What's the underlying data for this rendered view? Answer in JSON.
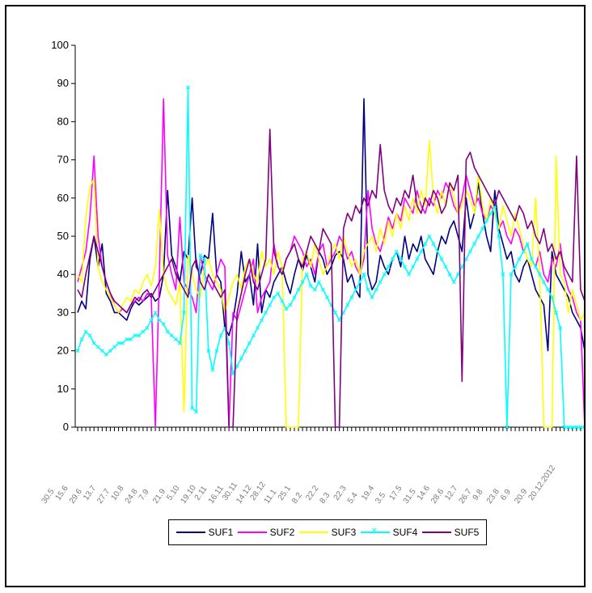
{
  "chart_data": {
    "type": "line",
    "title": "",
    "xlabel": "",
    "ylabel": "",
    "ylim": [
      0,
      100
    ],
    "yticks": [
      "0",
      "10",
      "20",
      "30",
      "40",
      "50",
      "60",
      "70",
      "80",
      "90",
      "100"
    ],
    "legend_position": "bottom",
    "grid": false,
    "x_tick_labels": [
      "30.5",
      "15.6",
      "29.6",
      "13.7",
      "27.7",
      "10.8",
      "24.8",
      "7.9",
      "21.9",
      "5.10",
      "19.10",
      "2.11",
      "16.11",
      "30.11",
      "14.12",
      "28.12",
      "11.1",
      "25.1",
      "8.2",
      "22.2",
      "8.3",
      "22.3",
      "5.4",
      "19.4",
      "3.5",
      "17.5",
      "31.5",
      "14.6",
      "28.6",
      "12.7",
      "26.7",
      "9.8",
      "23.8",
      "6.9",
      "20.9",
      "20.12.2012"
    ],
    "series": [
      {
        "name": "SUF1",
        "color": "#000080",
        "marker": "none",
        "values": [
          30,
          33,
          31,
          44,
          50,
          42,
          48,
          35,
          33,
          30,
          30,
          29,
          28,
          31,
          33,
          32,
          33,
          34,
          35,
          33,
          34,
          40,
          62,
          45,
          42,
          38,
          46,
          44,
          60,
          42,
          40,
          45,
          44,
          56,
          40,
          38,
          26,
          24,
          28,
          35,
          46,
          38,
          40,
          32,
          48,
          30,
          36,
          34,
          38,
          40,
          42,
          38,
          35,
          40,
          44,
          41,
          45,
          42,
          38,
          46,
          44,
          40,
          42,
          45,
          46,
          44,
          38,
          40,
          36,
          34,
          86,
          40,
          36,
          38,
          45,
          42,
          40,
          44,
          46,
          42,
          50,
          44,
          48,
          46,
          50,
          44,
          42,
          40,
          46,
          50,
          48,
          52,
          54,
          50,
          46,
          60,
          52,
          56,
          64,
          56,
          50,
          46,
          62,
          52,
          48,
          44,
          46,
          40,
          38,
          42,
          44,
          40,
          36,
          34,
          32,
          20,
          46,
          40,
          38,
          36,
          34,
          30,
          28,
          26,
          20
        ]
      },
      {
        "name": "SUF2",
        "color": "#ff00ff",
        "marker": "none",
        "values": [
          38,
          42,
          46,
          55,
          71,
          50,
          42,
          38,
          35,
          32,
          30,
          31,
          30,
          32,
          33,
          34,
          33,
          35,
          34,
          0,
          40,
          86,
          45,
          40,
          36,
          55,
          38,
          36,
          34,
          30,
          45,
          40,
          38,
          36,
          40,
          44,
          42,
          0,
          30,
          28,
          32,
          36,
          40,
          44,
          30,
          34,
          36,
          38,
          48,
          42,
          40,
          44,
          46,
          50,
          48,
          46,
          42,
          44,
          40,
          46,
          48,
          42,
          44,
          46,
          50,
          48,
          44,
          46,
          42,
          40,
          44,
          62,
          52,
          48,
          46,
          50,
          55,
          52,
          56,
          54,
          60,
          58,
          56,
          62,
          58,
          56,
          60,
          58,
          62,
          60,
          64,
          62,
          58,
          56,
          60,
          66,
          62,
          58,
          60,
          56,
          54,
          58,
          56,
          52,
          54,
          50,
          48,
          52,
          50,
          46,
          48,
          44,
          42,
          46,
          40,
          38,
          44,
          42,
          48,
          40,
          36,
          34,
          30,
          28,
          0
        ]
      },
      {
        "name": "SUF3",
        "color": "#ffff00",
        "marker": "none",
        "values": [
          40,
          38,
          55,
          63,
          65,
          42,
          38,
          36,
          34,
          32,
          30,
          32,
          34,
          33,
          36,
          35,
          38,
          40,
          37,
          42,
          57,
          40,
          36,
          34,
          32,
          38,
          4,
          45,
          40,
          36,
          34,
          42,
          44,
          40,
          38,
          36,
          30,
          34,
          38,
          40,
          36,
          42,
          44,
          40,
          38,
          46,
          42,
          44,
          40,
          46,
          42,
          0,
          0,
          0,
          0,
          44,
          46,
          42,
          48,
          44,
          40,
          42,
          46,
          48,
          44,
          50,
          46,
          42,
          44,
          40,
          46,
          48,
          50,
          46,
          52,
          48,
          54,
          50,
          56,
          52,
          58,
          54,
          60,
          56,
          62,
          58,
          75,
          60,
          56,
          62,
          58,
          64,
          60,
          56,
          58,
          62,
          60,
          56,
          66,
          58,
          54,
          60,
          56,
          52,
          58,
          54,
          50,
          56,
          52,
          48,
          44,
          42,
          60,
          40,
          0,
          0,
          0,
          71,
          40,
          38,
          30,
          36,
          32,
          28,
          30
        ]
      },
      {
        "name": "SUF4",
        "color": "#00ffff",
        "marker": "x",
        "values": [
          20,
          23,
          25,
          24,
          22,
          21,
          20,
          19,
          20,
          21,
          22,
          22,
          23,
          23,
          24,
          24,
          25,
          26,
          28,
          30,
          28,
          27,
          25,
          24,
          23,
          22,
          30,
          89,
          5,
          4,
          45,
          44,
          20,
          15,
          20,
          24,
          26,
          22,
          14,
          16,
          18,
          20,
          22,
          24,
          26,
          28,
          30,
          32,
          34,
          35,
          33,
          31,
          32,
          34,
          36,
          38,
          40,
          37,
          36,
          38,
          36,
          34,
          32,
          30,
          28,
          30,
          32,
          34,
          36,
          38,
          40,
          36,
          34,
          36,
          38,
          40,
          42,
          44,
          46,
          44,
          42,
          40,
          42,
          44,
          46,
          48,
          50,
          48,
          46,
          44,
          42,
          40,
          38,
          40,
          42,
          44,
          46,
          48,
          50,
          52,
          54,
          56,
          58,
          50,
          40,
          0,
          40,
          42,
          44,
          46,
          48,
          44,
          42,
          40,
          38,
          36,
          34,
          30,
          26,
          0,
          0,
          0,
          0,
          0,
          0
        ]
      },
      {
        "name": "SUF5",
        "color": "#800080",
        "marker": "none",
        "values": [
          36,
          34,
          40,
          45,
          50,
          46,
          42,
          38,
          35,
          33,
          32,
          31,
          30,
          32,
          34,
          33,
          35,
          36,
          34,
          36,
          38,
          40,
          42,
          44,
          40,
          38,
          36,
          34,
          42,
          44,
          38,
          36,
          40,
          38,
          36,
          34,
          36,
          0,
          0,
          30,
          35,
          40,
          44,
          38,
          36,
          40,
          44,
          78,
          46,
          42,
          40,
          44,
          46,
          48,
          44,
          42,
          46,
          50,
          48,
          46,
          52,
          50,
          48,
          0,
          0,
          52,
          56,
          54,
          58,
          56,
          60,
          58,
          62,
          60,
          74,
          62,
          58,
          56,
          60,
          58,
          62,
          60,
          66,
          58,
          56,
          60,
          58,
          62,
          60,
          56,
          58,
          64,
          62,
          66,
          12,
          70,
          72,
          68,
          66,
          64,
          62,
          60,
          58,
          62,
          60,
          58,
          56,
          54,
          58,
          56,
          52,
          54,
          50,
          48,
          52,
          46,
          48,
          44,
          46,
          42,
          40,
          38,
          71,
          36,
          33
        ]
      }
    ]
  }
}
